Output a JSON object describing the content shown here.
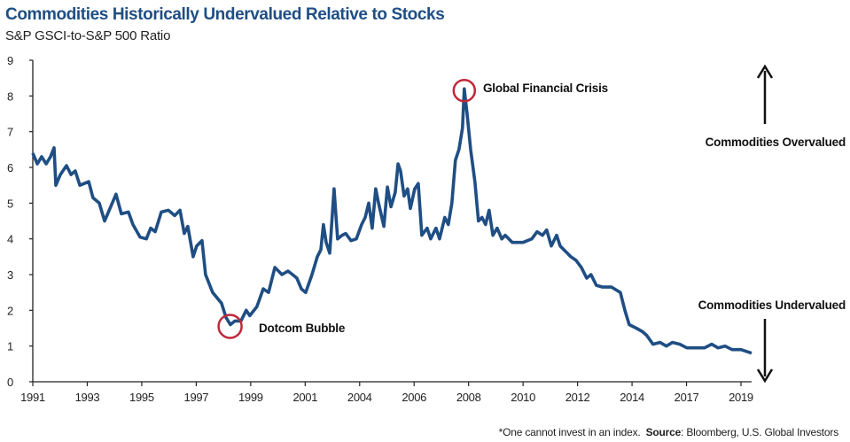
{
  "chart_data": {
    "type": "line",
    "title": "Commodities Historically Undervalued Relative to Stocks",
    "subtitle": "S&P GSCI-to-S&P 500 Ratio",
    "xlabel": "",
    "ylabel": "",
    "ylim": [
      0,
      9
    ],
    "xlim": [
      1991.0,
      2019.5
    ],
    "yticks": [
      "0",
      "1",
      "2",
      "3",
      "4",
      "5",
      "6",
      "7",
      "8",
      "9"
    ],
    "xticks": [
      "1991",
      "1993",
      "1995",
      "1997",
      "1999",
      "2001",
      "2004",
      "2006",
      "2008",
      "2010",
      "2012",
      "2014",
      "2017",
      "2019"
    ],
    "grid": false,
    "colors": {
      "line": "#1f4e84",
      "circle": "#c0283a",
      "title": "#1f4e84"
    },
    "series": [
      {
        "name": "S&P GSCI-to-S&P 500 Ratio",
        "x": [
          1991.0,
          1991.18,
          1991.35,
          1991.53,
          1991.7,
          1991.84,
          1991.91,
          1992.09,
          1992.33,
          1992.51,
          1992.68,
          1992.86,
          1993.21,
          1993.38,
          1993.63,
          1993.84,
          1994.08,
          1994.29,
          1994.5,
          1994.78,
          1994.96,
          1995.24,
          1995.49,
          1995.66,
          1995.84,
          1996.08,
          1996.36,
          1996.61,
          1996.82,
          1996.99,
          1997.13,
          1997.34,
          1997.48,
          1997.69,
          1997.83,
          1998.11,
          1998.46,
          1998.64,
          1998.81,
          1998.99,
          1999.23,
          1999.44,
          1999.58,
          1999.86,
          2000.11,
          2000.32,
          2000.57,
          2000.85,
          2001.09,
          2001.27,
          2001.44,
          2001.62,
          2001.79,
          2002.04,
          2002.25,
          2002.39,
          2002.49,
          2002.6,
          2002.74,
          2002.91,
          2003.05,
          2003.23,
          2003.37,
          2003.58,
          2003.79,
          2004.0,
          2004.14,
          2004.28,
          2004.42,
          2004.56,
          2004.67,
          2004.88,
          2005.02,
          2005.16,
          2005.33,
          2005.44,
          2005.54,
          2005.68,
          2005.82,
          2005.93,
          2006.1,
          2006.24,
          2006.38,
          2006.59,
          2006.73,
          2006.94,
          2007.08,
          2007.29,
          2007.43,
          2007.57,
          2007.71,
          2007.85,
          2007.99,
          2008.06,
          2008.17,
          2008.31,
          2008.48,
          2008.62,
          2008.76,
          2008.9,
          2009.04,
          2009.19,
          2009.36,
          2009.54,
          2009.68,
          2009.96,
          2010.38,
          2010.73,
          2010.94,
          2011.15,
          2011.32,
          2011.5,
          2011.71,
          2011.85,
          2012.06,
          2012.27,
          2012.48,
          2012.69,
          2012.9,
          2013.07,
          2013.28,
          2013.53,
          2013.88,
          2014.23,
          2014.41,
          2014.58,
          2014.86,
          2015.11,
          2015.27,
          2015.52,
          2015.8,
          2016.05,
          2016.29,
          2016.58,
          2016.86,
          2017.21,
          2017.56,
          2017.84,
          2018.09,
          2018.37,
          2018.65,
          2019.0,
          2019.42
        ],
        "y": [
          6.4,
          6.1,
          6.3,
          6.1,
          6.3,
          6.55,
          5.5,
          5.8,
          6.05,
          5.8,
          5.9,
          5.5,
          5.6,
          5.15,
          5.0,
          4.5,
          4.9,
          5.25,
          4.7,
          4.75,
          4.4,
          4.05,
          4.0,
          4.3,
          4.2,
          4.75,
          4.8,
          4.65,
          4.8,
          4.15,
          4.35,
          3.5,
          3.8,
          3.95,
          3.0,
          2.5,
          2.2,
          1.8,
          1.6,
          1.7,
          1.7,
          2.0,
          1.85,
          2.1,
          2.6,
          2.5,
          3.2,
          3.0,
          3.1,
          3.0,
          2.9,
          2.6,
          2.5,
          3.0,
          3.5,
          3.7,
          4.4,
          3.9,
          3.6,
          5.4,
          4.0,
          4.1,
          4.15,
          3.95,
          4.0,
          4.4,
          4.6,
          5.0,
          4.3,
          5.4,
          5.0,
          4.35,
          5.45,
          4.9,
          5.3,
          6.1,
          5.9,
          5.2,
          5.4,
          4.85,
          5.4,
          5.55,
          4.1,
          4.3,
          4.0,
          4.3,
          4.0,
          4.6,
          4.4,
          5.0,
          6.2,
          6.5,
          7.1,
          8.2,
          7.5,
          6.5,
          5.6,
          4.5,
          4.6,
          4.4,
          4.8,
          4.1,
          4.3,
          4.0,
          4.1,
          3.9,
          3.9,
          4.0,
          4.2,
          4.1,
          4.25,
          3.8,
          4.1,
          3.8,
          3.65,
          3.5,
          3.4,
          3.2,
          2.9,
          3.0,
          2.7,
          2.65,
          2.65,
          2.5,
          2.0,
          1.6,
          1.5,
          1.4,
          1.3,
          1.05,
          1.1,
          1.0,
          1.1,
          1.05,
          0.95,
          0.95,
          0.95,
          1.05,
          0.95,
          1.0,
          0.9,
          0.9,
          0.8
        ]
      }
    ],
    "annotations": {
      "gfc": {
        "label": "Global Financial Crisis",
        "x": 2008.06,
        "y": 8.2
      },
      "dotcom": {
        "label": "Dotcom Bubble",
        "x": 1998.8,
        "y": 1.55
      },
      "over": "Commodities Overvalued",
      "under": "Commodities Undervalued"
    },
    "footnote": {
      "note": "*One cannot invest in an index.",
      "source_label": "Source",
      "source_text": ": Bloomberg, U.S. Global Investors"
    }
  }
}
